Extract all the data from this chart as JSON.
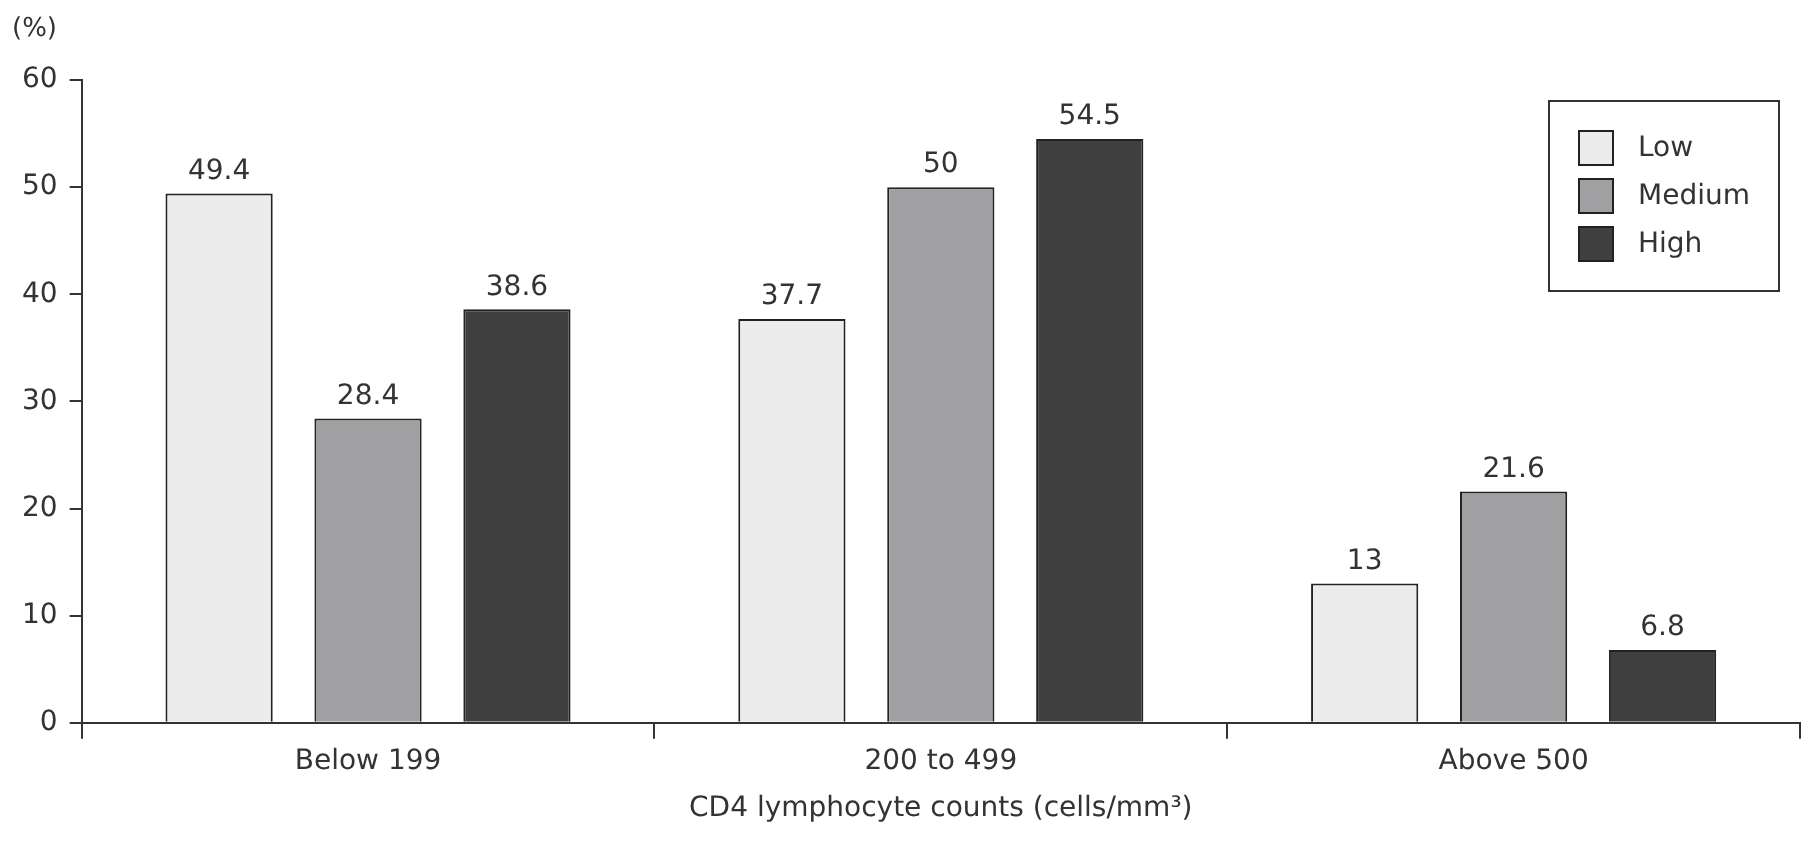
{
  "chart_data": {
    "type": "bar",
    "ylabel": "(%)",
    "xlabel": "CD4 lymphocyte counts (cells/mm³)",
    "categories": [
      "Below 199",
      "200 to 499",
      "Above 500"
    ],
    "series": [
      {
        "name": "Low",
        "color": "#ececec",
        "values": [
          49.4,
          37.7,
          13
        ]
      },
      {
        "name": "Medium",
        "color": "#a0a0a2",
        "values": [
          28.4,
          50,
          21.6
        ]
      },
      {
        "name": "High",
        "color": "#3f3f40",
        "values": [
          38.6,
          54.5,
          6.8
        ]
      }
    ],
    "ylim": [
      0,
      60
    ],
    "yticks": [
      0,
      10,
      20,
      30,
      40,
      50,
      60
    ],
    "grid": false,
    "legend": "top right",
    "data_labels": true
  }
}
